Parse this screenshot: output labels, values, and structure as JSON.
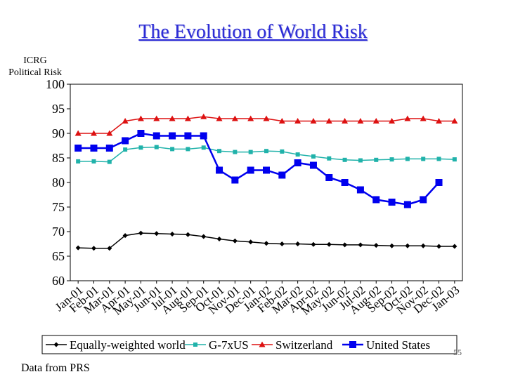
{
  "slide": {
    "title": "The Evolution of World Risk",
    "footnote": "Data from PRS",
    "page_number": "55"
  },
  "chart_data": {
    "type": "line",
    "ylabel_lines": [
      "ICRG",
      "Political Risk"
    ],
    "ylim": [
      60,
      100
    ],
    "yticks": [
      60,
      65,
      70,
      75,
      80,
      85,
      90,
      95,
      100
    ],
    "legend_position": "bottom",
    "grid": false,
    "x": [
      "Jan-01",
      "Feb-01",
      "Mar-01",
      "Apr-01",
      "May-01",
      "Jun-01",
      "Jul-01",
      "Aug-01",
      "Sep-01",
      "Oct-01",
      "Nov-01",
      "Dec-01",
      "Jan-02",
      "Feb-02",
      "Mar-02",
      "Apr-02",
      "May-02",
      "Jun-02",
      "Jul-02",
      "Aug-02",
      "Sep-02",
      "Oct-02",
      "Nov-02",
      "Dec-02",
      "Jan-03"
    ],
    "series": [
      {
        "name": "Equally-weighted world",
        "color": "#000000",
        "marker": "diamond",
        "values": [
          66.7,
          66.6,
          66.6,
          69.2,
          69.7,
          69.6,
          69.5,
          69.4,
          69.0,
          68.5,
          68.1,
          67.9,
          67.6,
          67.5,
          67.5,
          67.4,
          67.4,
          67.3,
          67.3,
          67.2,
          67.1,
          67.1,
          67.1,
          67.0,
          67.0
        ]
      },
      {
        "name": "G-7xUS",
        "color": "#20b2aa",
        "marker": "square",
        "values": [
          84.3,
          84.3,
          84.2,
          86.7,
          87.1,
          87.2,
          86.8,
          86.8,
          87.1,
          86.4,
          86.2,
          86.2,
          86.4,
          86.3,
          85.7,
          85.3,
          84.9,
          84.6,
          84.5,
          84.6,
          84.7,
          84.8,
          84.8,
          84.8,
          84.7
        ]
      },
      {
        "name": "Switzerland",
        "color": "#dd1111",
        "marker": "triangle",
        "values": [
          90.0,
          90.0,
          90.0,
          92.5,
          93.0,
          93.0,
          93.0,
          93.0,
          93.4,
          93.0,
          93.0,
          93.0,
          93.0,
          92.5,
          92.5,
          92.5,
          92.5,
          92.5,
          92.5,
          92.5,
          92.5,
          93.0,
          93.0,
          92.5,
          92.5
        ]
      },
      {
        "name": "United States",
        "color": "#0000ee",
        "marker": "bigsquare",
        "values": [
          87.0,
          87.0,
          87.0,
          88.5,
          90.0,
          89.5,
          89.5,
          89.5,
          89.5,
          82.5,
          80.5,
          82.5,
          82.5,
          81.5,
          84.0,
          83.5,
          81.0,
          80.0,
          78.5,
          76.5,
          76.0,
          75.5,
          76.5,
          80.0,
          null
        ]
      }
    ]
  }
}
